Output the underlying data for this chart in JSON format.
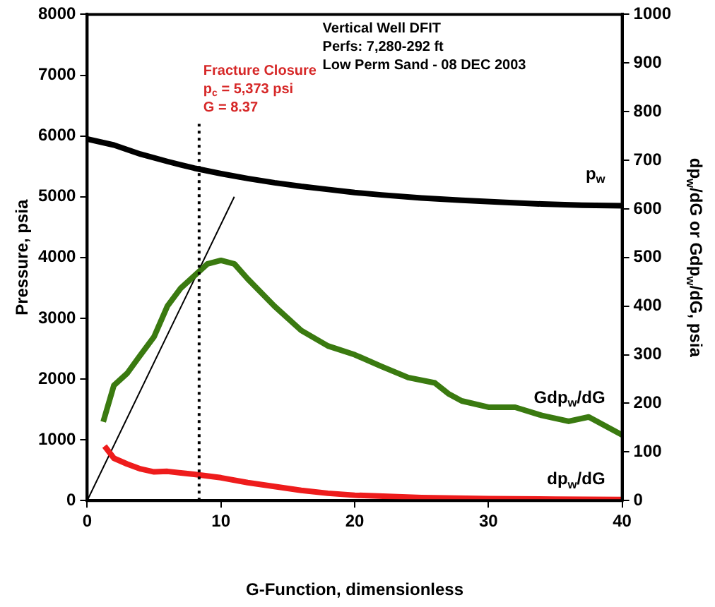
{
  "chart_data": {
    "type": "line",
    "xlabel": "G-Function, dimensionless",
    "ylabel": "Pressure, psia",
    "y2label": "dp$_{w}$/dG or Gdp$_{w}$/dG, psia",
    "xlim": [
      0,
      40
    ],
    "xticks": [
      0,
      10,
      20,
      30,
      40
    ],
    "ylim": [
      0,
      8000
    ],
    "yticks": [
      0,
      1000,
      2000,
      3000,
      4000,
      5000,
      6000,
      7000,
      8000
    ],
    "y2lim": [
      0,
      1000
    ],
    "y2ticks": [
      0,
      100,
      200,
      300,
      400,
      500,
      600,
      700,
      800,
      900,
      1000
    ],
    "grid": false,
    "legend": false,
    "marker": "none",
    "series": [
      {
        "name": "p$_{w}$",
        "color": "#000000",
        "x": [
          0,
          2,
          4,
          6,
          8,
          10,
          12,
          14,
          16,
          18,
          20,
          22,
          25,
          28,
          31,
          34,
          37,
          40
        ],
        "values": [
          5950,
          5850,
          5700,
          5580,
          5470,
          5380,
          5300,
          5230,
          5170,
          5120,
          5070,
          5030,
          4980,
          4940,
          4910,
          4880,
          4860,
          4850
        ]
      },
      {
        "name": "Gdp$_{w}$/dG",
        "color": "#3a7a10",
        "axis": "y2",
        "x": [
          1.2,
          2,
          3,
          4,
          5,
          6,
          7,
          8,
          9,
          10,
          11,
          12,
          14,
          16,
          18,
          20,
          22,
          24,
          26,
          27,
          28,
          30,
          32,
          34,
          36,
          37.5,
          40
        ],
        "values": [
          162,
          237,
          262,
          300,
          337,
          400,
          437,
          462,
          487,
          494,
          487,
          456,
          400,
          350,
          318,
          300,
          276,
          253,
          242,
          220,
          205,
          192,
          192,
          175,
          163,
          172,
          135
        ]
      },
      {
        "name": "dp$_{w}$/dG",
        "color": "#ee1c1c",
        "axis": "y2",
        "x": [
          1.3,
          2,
          3,
          4,
          5,
          6,
          7,
          8,
          10,
          12,
          14,
          16,
          18,
          20,
          25,
          30,
          35,
          40
        ],
        "values": [
          112,
          87,
          75,
          65,
          59,
          60,
          57,
          54,
          47,
          37,
          29,
          21,
          15,
          11,
          6,
          4,
          3,
          2
        ]
      },
      {
        "color": "#000000",
        "x": [
          0,
          11
        ],
        "values": [
          0,
          5000
        ]
      }
    ],
    "ref_lines": [
      {
        "axis": "x",
        "value": 8.37,
        "line_style": "dotted",
        "color": "#000000"
      }
    ],
    "annotations": [
      "Vertical Well DFIT",
      "Perfs: 7,280-292 ft",
      "Low Perm Sand - 08 DEC 2003",
      "Fracture Closure",
      "p$_{c}$ = 5,373 psi",
      "G = 8.37"
    ]
  }
}
